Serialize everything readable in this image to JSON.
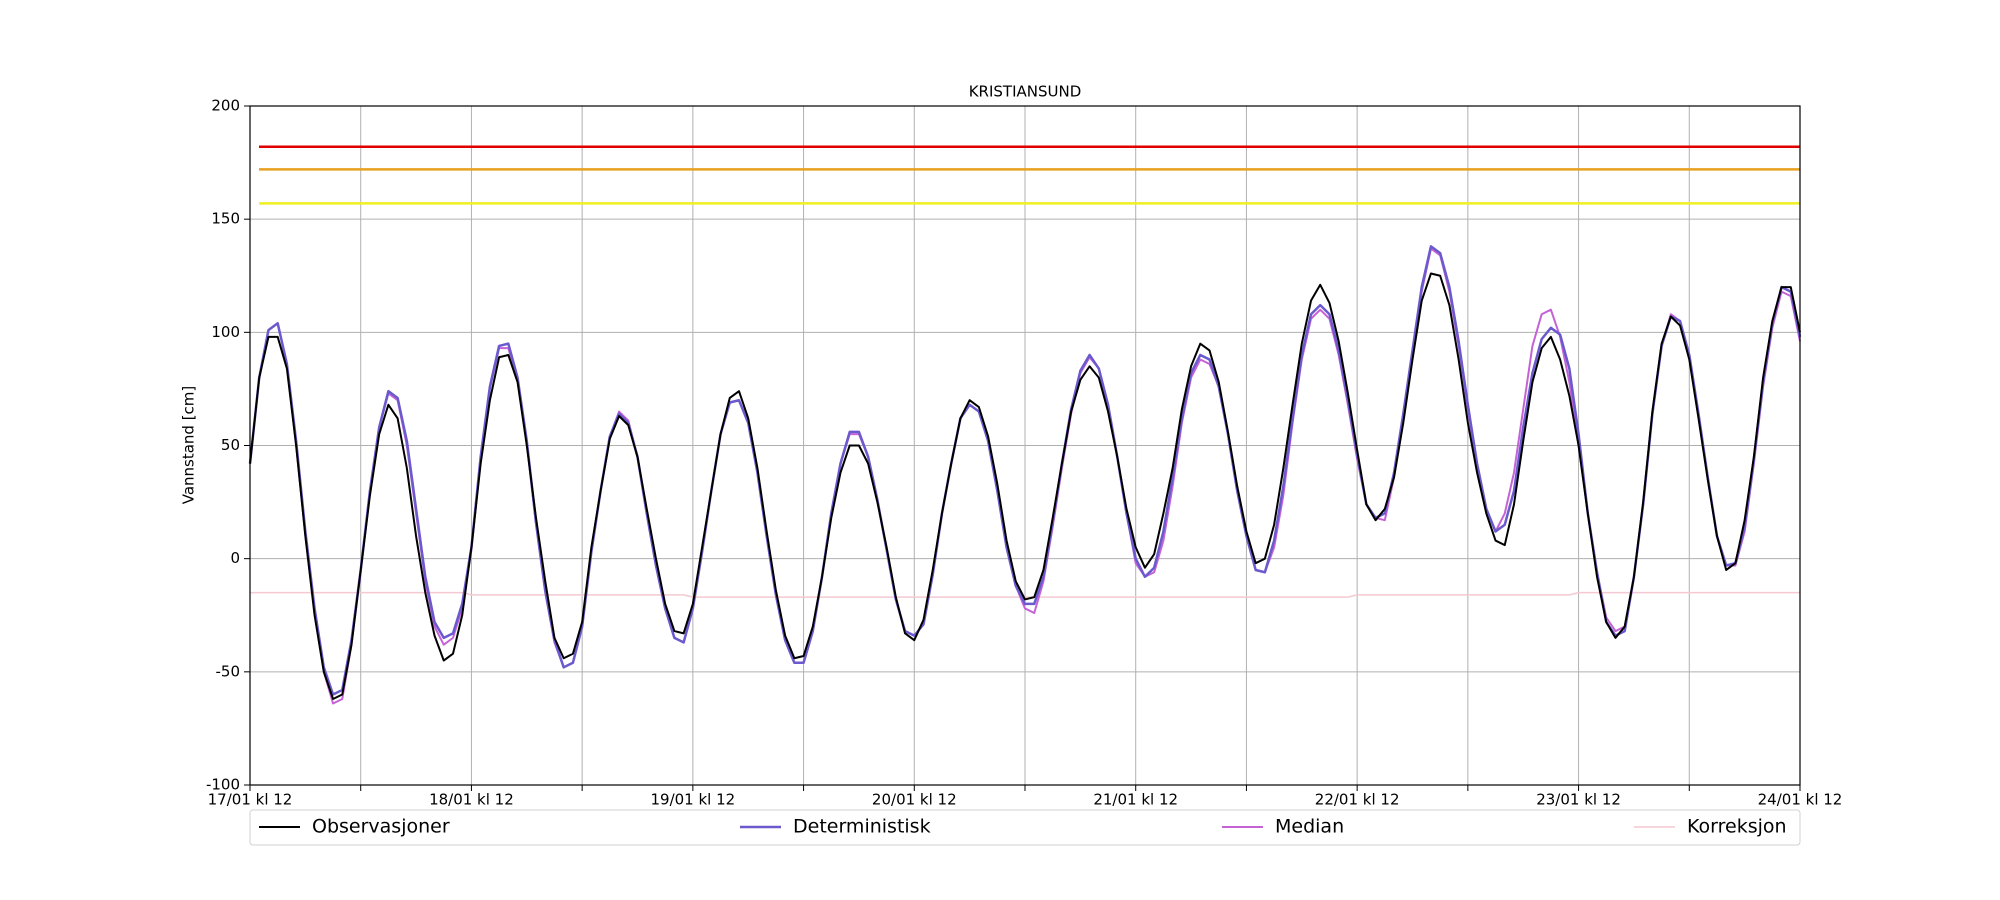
{
  "chart_data": {
    "type": "line",
    "title": "KRISTIANSUND",
    "y_label": "Vannstand [cm]",
    "xlim": [
      0,
      168
    ],
    "xticks": [
      {
        "value": 0,
        "label": "17/01 kl 12"
      },
      {
        "value": 24,
        "label": "18/01 kl 12"
      },
      {
        "value": 48,
        "label": "19/01 kl 12"
      },
      {
        "value": 72,
        "label": "20/01 kl 12"
      },
      {
        "value": 96,
        "label": "21/01 kl 12"
      },
      {
        "value": 120,
        "label": "22/01 kl 12"
      },
      {
        "value": 144,
        "label": "23/01 kl 12"
      },
      {
        "value": 168,
        "label": "24/01 kl 12"
      }
    ],
    "xminorticks": [
      12,
      36,
      60,
      84,
      108,
      132,
      156
    ],
    "ylim": [
      -100,
      200
    ],
    "yticks": [
      -100,
      -50,
      0,
      50,
      100,
      150,
      200
    ],
    "grid": true,
    "legend": "bottom",
    "thresholds": [
      {
        "value": 182,
        "color": "#e00000"
      },
      {
        "value": 172,
        "color": "#e8a020"
      },
      {
        "value": 157,
        "color": "#f0f020"
      }
    ],
    "x": [
      0,
      1,
      2,
      3,
      4,
      5,
      6,
      7,
      8,
      9,
      10,
      11,
      12,
      13,
      14,
      15,
      16,
      17,
      18,
      19,
      20,
      21,
      22,
      23,
      24,
      25,
      26,
      27,
      28,
      29,
      30,
      31,
      32,
      33,
      34,
      35,
      36,
      37,
      38,
      39,
      40,
      41,
      42,
      43,
      44,
      45,
      46,
      47,
      48,
      49,
      50,
      51,
      52,
      53,
      54,
      55,
      56,
      57,
      58,
      59,
      60,
      61,
      62,
      63,
      64,
      65,
      66,
      67,
      68,
      69,
      70,
      71,
      72,
      73,
      74,
      75,
      76,
      77,
      78,
      79,
      80,
      81,
      82,
      83,
      84,
      85,
      86,
      87,
      88,
      89,
      90,
      91,
      92,
      93,
      94,
      95,
      96,
      97,
      98,
      99,
      100,
      101,
      102,
      103,
      104,
      105,
      106,
      107,
      108,
      109,
      110,
      111,
      112,
      113,
      114,
      115,
      116,
      117,
      118,
      119,
      120,
      121,
      122,
      123,
      124,
      125,
      126,
      127,
      128,
      129,
      130,
      131,
      132,
      133,
      134,
      135,
      136,
      137,
      138,
      139,
      140,
      141,
      142,
      143,
      144,
      145,
      146,
      147,
      148,
      149,
      150,
      151,
      152,
      153,
      154,
      155,
      156,
      157,
      158,
      159,
      160,
      161,
      162,
      163,
      164,
      165,
      166,
      167,
      168
    ],
    "series": [
      {
        "name": "Observasjoner",
        "color": "#000000",
        "width": 2,
        "values": [
          42,
          80,
          98,
          98,
          84,
          50,
          10,
          -25,
          -50,
          -62,
          -60,
          -38,
          -5,
          28,
          55,
          68,
          62,
          40,
          10,
          -15,
          -34,
          -45,
          -42,
          -25,
          5,
          42,
          70,
          89,
          90,
          78,
          50,
          18,
          -10,
          -35,
          -44,
          -42,
          -28,
          5,
          30,
          53,
          63,
          59,
          45,
          22,
          0,
          -20,
          -32,
          -33,
          -20,
          5,
          30,
          55,
          71,
          74,
          62,
          40,
          12,
          -14,
          -34,
          -44,
          -43,
          -30,
          -8,
          18,
          38,
          50,
          50,
          42,
          25,
          5,
          -17,
          -33,
          -36,
          -27,
          -5,
          20,
          42,
          62,
          70,
          67,
          54,
          33,
          8,
          -10,
          -18,
          -17,
          -5,
          18,
          42,
          65,
          79,
          85,
          80,
          65,
          45,
          22,
          5,
          -4,
          2,
          20,
          40,
          66,
          85,
          95,
          92,
          78,
          56,
          32,
          12,
          -2,
          0,
          15,
          40,
          68,
          95,
          114,
          121,
          113,
          96,
          73,
          48,
          24,
          17,
          22,
          36,
          60,
          88,
          114,
          126,
          125,
          112,
          88,
          60,
          38,
          20,
          8,
          6,
          24,
          52,
          78,
          93,
          98,
          88,
          72,
          50,
          20,
          -8,
          -28,
          -35,
          -30,
          -8,
          25,
          65,
          95,
          107,
          103,
          88,
          62,
          35,
          10,
          -5,
          -2,
          17,
          45,
          80,
          105,
          120,
          120,
          100
        ]
      },
      {
        "name": "Deterministisk",
        "color": "#6a5acd",
        "width": 2.5,
        "values": [
          42,
          80,
          101,
          104,
          86,
          52,
          12,
          -22,
          -48,
          -60,
          -58,
          -36,
          -5,
          30,
          58,
          74,
          71,
          52,
          22,
          -8,
          -28,
          -35,
          -33,
          -20,
          5,
          45,
          76,
          94,
          95,
          80,
          52,
          16,
          -14,
          -36,
          -48,
          -46,
          -30,
          3,
          30,
          54,
          64,
          60,
          45,
          20,
          -3,
          -22,
          -35,
          -37,
          -22,
          3,
          30,
          55,
          69,
          70,
          60,
          38,
          10,
          -16,
          -36,
          -46,
          -46,
          -32,
          -8,
          20,
          42,
          56,
          56,
          45,
          26,
          4,
          -18,
          -32,
          -34,
          -29,
          -7,
          20,
          42,
          62,
          68,
          65,
          52,
          30,
          5,
          -12,
          -20,
          -20,
          -8,
          16,
          42,
          66,
          83,
          90,
          84,
          68,
          45,
          20,
          0,
          -8,
          -4,
          12,
          36,
          62,
          82,
          90,
          88,
          76,
          55,
          30,
          10,
          -5,
          -6,
          8,
          32,
          62,
          90,
          108,
          112,
          108,
          92,
          70,
          46,
          24,
          18,
          20,
          38,
          64,
          92,
          120,
          138,
          135,
          120,
          96,
          68,
          42,
          22,
          12,
          15,
          30,
          58,
          82,
          97,
          102,
          99,
          84,
          55,
          20,
          -6,
          -28,
          -34,
          -32,
          -8,
          24,
          64,
          94,
          107,
          105,
          90,
          64,
          36,
          10,
          -3,
          -2,
          14,
          44,
          78,
          104,
          120,
          118,
          98
        ]
      },
      {
        "name": "Median",
        "color": "#c462d6",
        "width": 2,
        "values": [
          42,
          80,
          101,
          104,
          86,
          50,
          10,
          -24,
          -50,
          -64,
          -62,
          -38,
          -6,
          30,
          58,
          73,
          70,
          50,
          20,
          -10,
          -30,
          -38,
          -35,
          -22,
          4,
          44,
          75,
          93,
          93,
          79,
          51,
          15,
          -15,
          -37,
          -48,
          -46,
          -30,
          3,
          30,
          54,
          65,
          61,
          45,
          20,
          -3,
          -22,
          -35,
          -37,
          -22,
          3,
          30,
          55,
          69,
          70,
          60,
          38,
          10,
          -16,
          -36,
          -46,
          -46,
          -32,
          -8,
          20,
          42,
          55,
          55,
          45,
          26,
          4,
          -18,
          -32,
          -34,
          -29,
          -7,
          20,
          42,
          62,
          68,
          65,
          52,
          30,
          5,
          -12,
          -22,
          -24,
          -10,
          14,
          40,
          64,
          82,
          89,
          84,
          68,
          45,
          20,
          -2,
          -8,
          -6,
          8,
          32,
          60,
          80,
          88,
          86,
          76,
          55,
          30,
          10,
          -5,
          -6,
          5,
          28,
          60,
          88,
          106,
          110,
          106,
          90,
          68,
          44,
          24,
          18,
          17,
          36,
          62,
          90,
          118,
          137,
          134,
          118,
          94,
          66,
          40,
          22,
          12,
          20,
          38,
          66,
          94,
          108,
          110,
          98,
          78,
          50,
          20,
          -6,
          -26,
          -32,
          -30,
          -8,
          24,
          64,
          94,
          108,
          105,
          90,
          64,
          36,
          10,
          -3,
          -3,
          12,
          42,
          76,
          102,
          118,
          116,
          96
        ]
      },
      {
        "name": "Korreksjon",
        "color": "#f4c9d1",
        "width": 1.5,
        "values": [
          -15,
          -15,
          -15,
          -15,
          -15,
          -15,
          -15,
          -15,
          -15,
          -15,
          -15,
          -15,
          -15,
          -15,
          -15,
          -15,
          -15,
          -15,
          -15,
          -15,
          -15,
          -15,
          -15,
          -15,
          -16,
          -16,
          -16,
          -16,
          -16,
          -16,
          -16,
          -16,
          -16,
          -16,
          -16,
          -16,
          -16,
          -16,
          -16,
          -16,
          -16,
          -16,
          -16,
          -16,
          -16,
          -16,
          -16,
          -16,
          -17,
          -17,
          -17,
          -17,
          -17,
          -17,
          -17,
          -17,
          -17,
          -17,
          -17,
          -17,
          -17,
          -17,
          -17,
          -17,
          -17,
          -17,
          -17,
          -17,
          -17,
          -17,
          -17,
          -17,
          -17,
          -17,
          -17,
          -17,
          -17,
          -17,
          -17,
          -17,
          -17,
          -17,
          -17,
          -17,
          -17,
          -17,
          -17,
          -17,
          -17,
          -17,
          -17,
          -17,
          -17,
          -17,
          -17,
          -17,
          -17,
          -17,
          -17,
          -17,
          -17,
          -17,
          -17,
          -17,
          -17,
          -17,
          -17,
          -17,
          -17,
          -17,
          -17,
          -17,
          -17,
          -17,
          -17,
          -17,
          -17,
          -17,
          -17,
          -17,
          -16,
          -16,
          -16,
          -16,
          -16,
          -16,
          -16,
          -16,
          -16,
          -16,
          -16,
          -16,
          -16,
          -16,
          -16,
          -16,
          -16,
          -16,
          -16,
          -16,
          -16,
          -16,
          -16,
          -16,
          -15,
          -15,
          -15,
          -15,
          -15,
          -15,
          -15,
          -15,
          -15,
          -15,
          -15,
          -15,
          -15,
          -15,
          -15,
          -15,
          -15,
          -15,
          -15,
          -15,
          -15,
          -15,
          -15,
          -15,
          -15
        ]
      }
    ]
  }
}
